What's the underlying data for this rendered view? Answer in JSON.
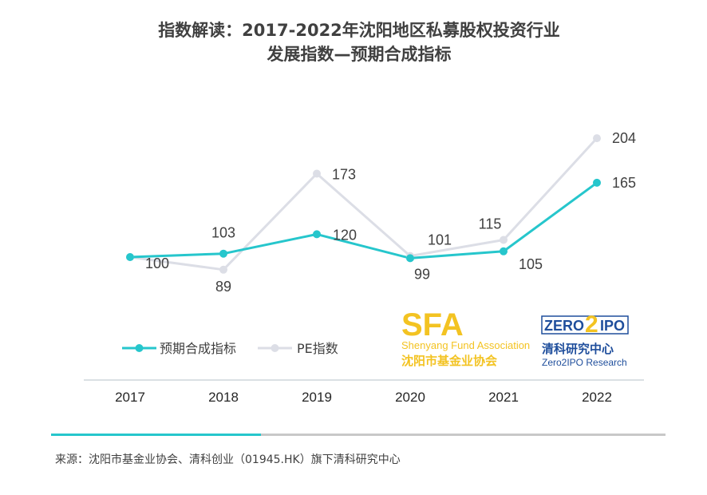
{
  "chart_data": {
    "type": "line",
    "title_line1": "指数解读：2017-2022年沈阳地区私募股权投资行业",
    "title_line2": "发展指数—预期合成指标",
    "categories": [
      "2017",
      "2018",
      "2019",
      "2020",
      "2021",
      "2022"
    ],
    "series": [
      {
        "name": "预期合成指标",
        "values": [
          100,
          103,
          120,
          99,
          105,
          165
        ],
        "color": "#26c6cc"
      },
      {
        "name": "PE指数",
        "values": [
          100,
          89,
          173,
          101,
          115,
          204
        ],
        "color": "#dcdee6"
      }
    ],
    "data_labels": {
      "预期合成指标": [
        "",
        "103",
        "120",
        "99",
        "105",
        "165"
      ],
      "PE指数": [
        "100",
        "89",
        "173",
        "101",
        "115",
        "204"
      ]
    },
    "legend_position": "bottom-left",
    "grid": false
  },
  "logos": {
    "sfa": {
      "mark": "SFA",
      "english": "Shenyang Fund Association",
      "chinese": "沈阳市基金业协会",
      "color": "#f3c322"
    },
    "zero2ipo": {
      "mark_left": "ZERO",
      "mark_digit": "2",
      "mark_right": "IPO",
      "chinese": "清科研究中心",
      "english": "Zero2IPO Research",
      "color": "#1f4e9c",
      "accent": "#f3c322"
    }
  },
  "footer": {
    "source": "来源：沈阳市基金业协会、清科创业（01945.HK）旗下清科研究中心",
    "bar_accent": "#26c6cc",
    "bar_base": "#c8c8c8"
  }
}
